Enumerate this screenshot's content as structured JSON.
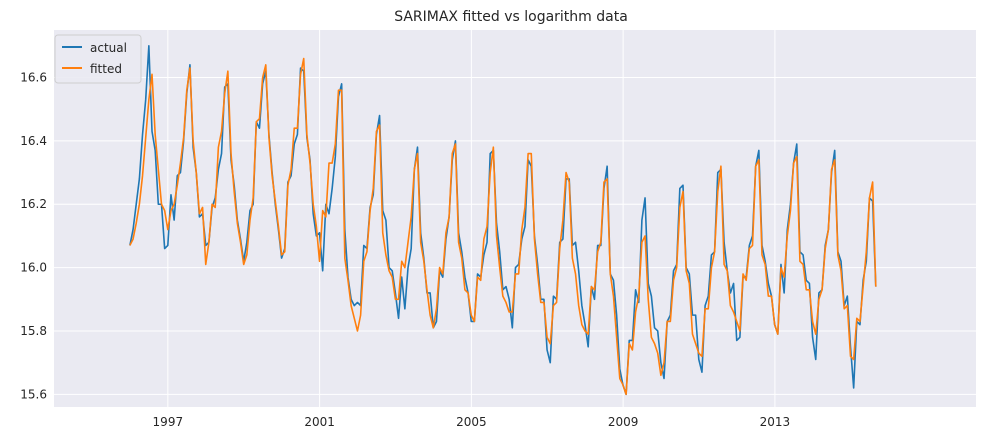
{
  "chart_data": {
    "type": "line",
    "title": "SARIMAX fitted vs logarithm data",
    "xlabel": "",
    "ylabel": "",
    "x_start": 1996.0,
    "x_step": 0.0833,
    "xlim": [
      1994.0,
      2018.3
    ],
    "ylim": [
      15.56,
      16.75
    ],
    "x_ticks": [
      1997,
      2001,
      2005,
      2009,
      2013
    ],
    "x_tick_labels": [
      "1997",
      "2001",
      "2005",
      "2009",
      "2013"
    ],
    "y_ticks": [
      15.6,
      15.8,
      16.0,
      16.2,
      16.4,
      16.6
    ],
    "y_tick_labels": [
      "15.6",
      "15.8",
      "16.0",
      "16.2",
      "16.4",
      "16.6"
    ],
    "grid": true,
    "legend_position": "upper-left",
    "series": [
      {
        "name": "actual",
        "color": "#1f77b4",
        "values": [
          16.07,
          16.12,
          16.2,
          16.28,
          16.42,
          16.53,
          16.7,
          16.43,
          16.37,
          16.2,
          16.2,
          16.06,
          16.07,
          16.23,
          16.15,
          16.29,
          16.3,
          16.4,
          16.55,
          16.64,
          16.38,
          16.3,
          16.16,
          16.17,
          16.07,
          16.08,
          16.19,
          16.22,
          16.31,
          16.36,
          16.57,
          16.58,
          16.34,
          16.26,
          16.15,
          16.09,
          16.02,
          16.08,
          16.18,
          16.2,
          16.46,
          16.44,
          16.58,
          16.62,
          16.42,
          16.3,
          16.2,
          16.12,
          16.03,
          16.06,
          16.27,
          16.29,
          16.39,
          16.42,
          16.63,
          16.62,
          16.41,
          16.34,
          16.17,
          16.1,
          16.11,
          15.99,
          16.2,
          16.17,
          16.25,
          16.35,
          16.54,
          16.58,
          16.12,
          15.97,
          15.9,
          15.88,
          15.89,
          15.88,
          16.07,
          16.06,
          16.19,
          16.23,
          16.42,
          16.48,
          16.18,
          16.15,
          16.0,
          15.99,
          15.92,
          15.84,
          15.97,
          15.87,
          16.0,
          16.06,
          16.31,
          16.38,
          16.11,
          16.03,
          15.92,
          15.92,
          15.81,
          15.83,
          15.99,
          15.97,
          16.09,
          16.16,
          16.34,
          16.4,
          16.11,
          16.05,
          15.97,
          15.92,
          15.83,
          15.83,
          15.98,
          15.97,
          16.04,
          16.08,
          16.36,
          16.37,
          16.14,
          16.05,
          15.93,
          15.94,
          15.9,
          15.81,
          16.0,
          16.01,
          16.09,
          16.13,
          16.34,
          16.32,
          16.1,
          16.01,
          15.9,
          15.9,
          15.74,
          15.7,
          15.91,
          15.9,
          16.08,
          16.09,
          16.28,
          16.28,
          16.07,
          16.08,
          15.99,
          15.88,
          15.82,
          15.75,
          15.94,
          15.9,
          16.07,
          16.07,
          16.25,
          16.32,
          15.98,
          15.96,
          15.85,
          15.68,
          15.63,
          15.6,
          15.77,
          15.77,
          15.93,
          15.89,
          16.15,
          16.22,
          15.95,
          15.91,
          15.81,
          15.8,
          15.7,
          15.65,
          15.83,
          15.85,
          15.99,
          16.01,
          16.25,
          16.26,
          16.0,
          15.98,
          15.85,
          15.85,
          15.71,
          15.67,
          15.88,
          15.91,
          16.04,
          16.05,
          16.3,
          16.31,
          16.08,
          15.99,
          15.92,
          15.95,
          15.77,
          15.78,
          15.97,
          15.97,
          16.07,
          16.1,
          16.32,
          16.37,
          16.07,
          16.02,
          15.95,
          15.91,
          15.82,
          15.79,
          16.01,
          15.92,
          16.12,
          16.2,
          16.33,
          16.39,
          16.05,
          16.04,
          15.96,
          15.95,
          15.78,
          15.71,
          15.92,
          15.93,
          16.07,
          16.12,
          16.3,
          16.37,
          16.05,
          16.02,
          15.88,
          15.91,
          15.75,
          15.62,
          15.83,
          15.82,
          15.96,
          16.02,
          16.22,
          16.21,
          15.94
        ]
      },
      {
        "name": "fitted",
        "color": "#ff7f0e",
        "values": [
          16.07,
          16.09,
          16.14,
          16.2,
          16.29,
          16.41,
          16.53,
          16.61,
          16.42,
          16.31,
          16.2,
          16.18,
          16.12,
          16.18,
          16.2,
          16.26,
          16.33,
          16.41,
          16.56,
          16.63,
          16.4,
          16.3,
          16.17,
          16.19,
          16.01,
          16.08,
          16.2,
          16.19,
          16.38,
          16.43,
          16.55,
          16.62,
          16.36,
          16.24,
          16.14,
          16.08,
          16.01,
          16.04,
          16.15,
          16.22,
          16.46,
          16.47,
          16.6,
          16.64,
          16.41,
          16.29,
          16.21,
          16.13,
          16.04,
          16.05,
          16.26,
          16.31,
          16.44,
          16.44,
          16.61,
          16.66,
          16.42,
          16.33,
          16.2,
          16.13,
          16.02,
          16.18,
          16.16,
          16.33,
          16.33,
          16.39,
          16.56,
          16.56,
          16.03,
          15.96,
          15.88,
          15.84,
          15.8,
          15.85,
          16.02,
          16.05,
          16.18,
          16.25,
          16.43,
          16.45,
          16.11,
          16.04,
          15.99,
          15.97,
          15.9,
          15.9,
          16.02,
          16.0,
          16.08,
          16.16,
          16.31,
          16.36,
          16.08,
          16.02,
          15.93,
          15.85,
          15.81,
          15.87,
          16.0,
          15.98,
          16.11,
          16.16,
          16.36,
          16.39,
          16.08,
          16.03,
          15.93,
          15.92,
          15.85,
          15.83,
          15.97,
          15.96,
          16.09,
          16.13,
          16.3,
          16.38,
          16.1,
          16.0,
          15.91,
          15.89,
          15.86,
          15.86,
          15.98,
          15.98,
          16.12,
          16.19,
          16.36,
          16.36,
          16.09,
          15.98,
          15.89,
          15.89,
          15.78,
          15.76,
          15.88,
          15.89,
          16.06,
          16.15,
          16.3,
          16.27,
          16.03,
          15.98,
          15.88,
          15.82,
          15.8,
          15.79,
          15.94,
          15.93,
          16.05,
          16.08,
          16.27,
          16.28,
          15.98,
          15.91,
          15.78,
          15.65,
          15.63,
          15.6,
          15.76,
          15.74,
          15.86,
          15.91,
          16.08,
          16.1,
          15.9,
          15.78,
          15.76,
          15.73,
          15.66,
          15.7,
          15.83,
          15.83,
          15.96,
          16.0,
          16.19,
          16.24,
          15.99,
          15.95,
          15.79,
          15.76,
          15.73,
          15.72,
          15.87,
          15.87,
          16.0,
          16.05,
          16.24,
          16.32,
          16.01,
          15.99,
          15.88,
          15.86,
          15.83,
          15.8,
          15.98,
          15.96,
          16.06,
          16.07,
          16.32,
          16.34,
          16.04,
          16.01,
          15.91,
          15.91,
          15.82,
          15.79,
          16.0,
          15.97,
          16.1,
          16.18,
          16.33,
          16.35,
          16.02,
          16.01,
          15.93,
          15.93,
          15.83,
          15.79,
          15.9,
          15.93,
          16.06,
          16.12,
          16.31,
          16.34,
          16.04,
          15.99,
          15.87,
          15.88,
          15.72,
          15.71,
          15.84,
          15.83,
          15.94,
          16.05,
          16.22,
          16.27,
          15.94
        ]
      }
    ]
  }
}
